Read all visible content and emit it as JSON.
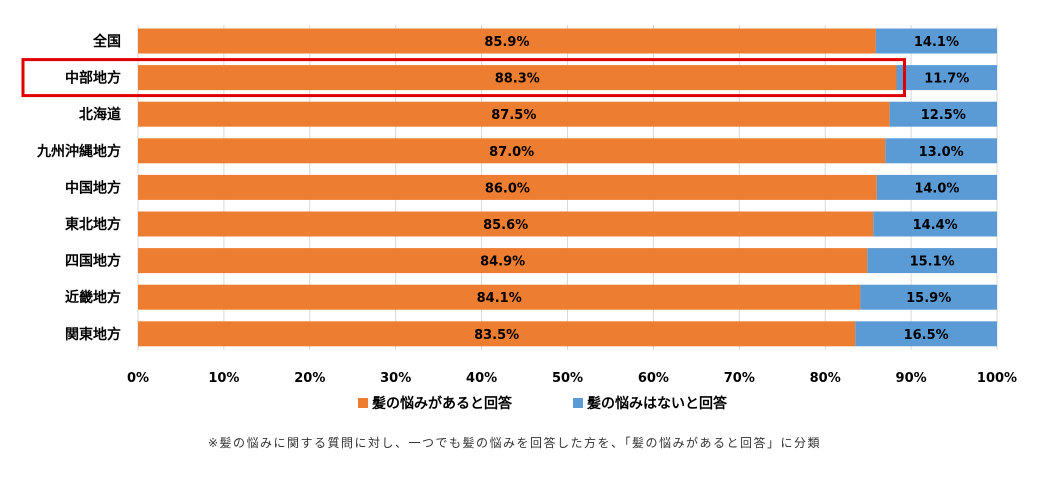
{
  "chart_data": {
    "type": "bar",
    "orientation": "horizontal",
    "stacked": true,
    "categories": [
      "全国",
      "中部地方",
      "北海道",
      "九州沖縄地方",
      "中国地方",
      "東北地方",
      "四国地方",
      "近畿地方",
      "関東地方"
    ],
    "series": [
      {
        "name": "髪の悩みがあると回答",
        "color": "#ED7D31",
        "values": [
          85.9,
          88.3,
          87.5,
          87.0,
          86.0,
          85.6,
          84.9,
          84.1,
          83.5
        ],
        "labels": [
          "85.9%",
          "88.3%",
          "87.5%",
          "87.0%",
          "86.0%",
          "85.6%",
          "84.9%",
          "84.1%",
          "83.5%"
        ]
      },
      {
        "name": "髪の悩みはないと回答",
        "color": "#5B9BD5",
        "values": [
          14.1,
          11.7,
          12.5,
          13.0,
          14.0,
          14.4,
          15.1,
          15.9,
          16.5
        ],
        "labels": [
          "14.1%",
          "11.7%",
          "12.5%",
          "13.0%",
          "14.0%",
          "14.4%",
          "15.1%",
          "15.9%",
          "16.5%"
        ]
      }
    ],
    "xlim": [
      0,
      100
    ],
    "xticks": [
      "0%",
      "10%",
      "20%",
      "30%",
      "40%",
      "50%",
      "60%",
      "70%",
      "80%",
      "90%",
      "100%"
    ],
    "legend_position": "bottom",
    "grid": true,
    "highlighted_category": "中部地方",
    "highlight_color": "#E00000"
  },
  "footnote": "※髪の悩みに関する質問に対し、一つでも髪の悩みを回答した方を、「髪の悩みがあると回答」に分類"
}
